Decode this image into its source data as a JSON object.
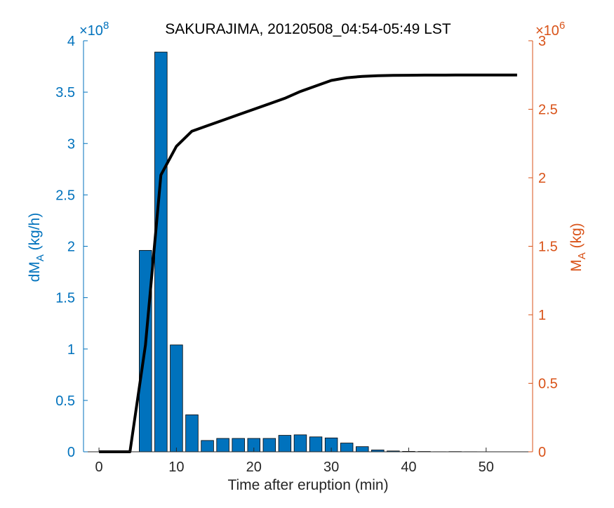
{
  "chart_data": {
    "type": "bar+line",
    "title": "SAKURAJIMA, 20120508_04:54-05:49 LST",
    "xlabel": "Time after eruption (min)",
    "ylabel_left": {
      "main": "dM",
      "sub": "A",
      "unit": " (kg/h)"
    },
    "ylabel_right": {
      "main": "M",
      "sub": "A",
      "unit": " (kg)"
    },
    "xlim": [
      -2,
      56
    ],
    "ylim_left": [
      0,
      4
    ],
    "ylim_right": [
      0,
      3
    ],
    "left_exponent": {
      "base": "×10",
      "power": "8"
    },
    "right_exponent": {
      "base": "×10",
      "power": "6"
    },
    "x_ticks": [
      "0",
      "10",
      "20",
      "30",
      "40",
      "50"
    ],
    "y_left_ticks": [
      "0",
      "0.5",
      "1",
      "1.5",
      "2",
      "2.5",
      "3",
      "3.5",
      "4"
    ],
    "y_right_ticks": [
      "0",
      "0.5",
      "1",
      "1.5",
      "2",
      "2.5",
      "3"
    ],
    "grid": false,
    "colors": {
      "bars": "#0072BD",
      "bar_edge": "#000000",
      "line": "#000000",
      "left_axis": "#0072BD",
      "right_axis": "#D95319"
    },
    "bars": {
      "x": [
        0,
        2,
        4,
        6,
        8,
        10,
        12,
        14,
        16,
        18,
        20,
        22,
        24,
        26,
        28,
        30,
        32,
        34,
        36,
        38,
        40,
        42,
        44,
        46,
        48,
        50,
        52,
        54
      ],
      "values": [
        0,
        0,
        0,
        1.96,
        3.89,
        1.04,
        0.36,
        0.11,
        0.13,
        0.13,
        0.13,
        0.13,
        0.16,
        0.165,
        0.145,
        0.135,
        0.085,
        0.05,
        0.018,
        0.008,
        0.004,
        0.003,
        0.001,
        0.002,
        0.001,
        0.0005,
        0.0005,
        0
      ]
    },
    "line": {
      "x": [
        0,
        2,
        4,
        6,
        8,
        10,
        12,
        14,
        16,
        18,
        20,
        22,
        24,
        26,
        28,
        30,
        32,
        34,
        36,
        38,
        40,
        42,
        44,
        46,
        48,
        50,
        52,
        54
      ],
      "values": [
        0,
        0,
        0,
        0.78,
        2.02,
        2.23,
        2.34,
        2.38,
        2.42,
        2.46,
        2.5,
        2.54,
        2.58,
        2.63,
        2.67,
        2.71,
        2.73,
        2.74,
        2.745,
        2.747,
        2.748,
        2.749,
        2.749,
        2.75,
        2.75,
        2.75,
        2.75,
        2.75
      ]
    }
  }
}
